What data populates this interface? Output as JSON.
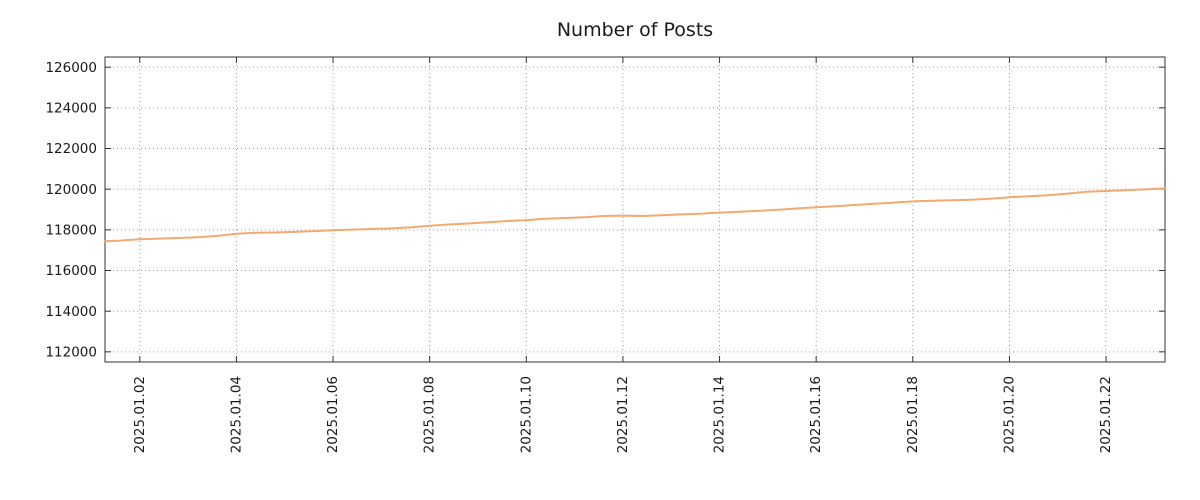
{
  "page": {
    "title": "Number of Posts"
  },
  "chart_data": {
    "type": "line",
    "title": "Number of Posts",
    "legend": "none",
    "background": "#ffffff",
    "line_color": "#f3a96f",
    "grid": {
      "style": "dotted",
      "color": "#999999"
    },
    "x_axis": {
      "unit": "date (2025.01.DD)",
      "range": [
        1.28,
        23.22
      ],
      "ticks": [
        {
          "value": 2,
          "label": "2025.01.02"
        },
        {
          "value": 4,
          "label": "2025.01.04"
        },
        {
          "value": 6,
          "label": "2025.01.06"
        },
        {
          "value": 8,
          "label": "2025.01.08"
        },
        {
          "value": 10,
          "label": "2025.01.10"
        },
        {
          "value": 12,
          "label": "2025.01.12"
        },
        {
          "value": 14,
          "label": "2025.01.14"
        },
        {
          "value": 16,
          "label": "2025.01.16"
        },
        {
          "value": 18,
          "label": "2025.01.18"
        },
        {
          "value": 20,
          "label": "2025.01.20"
        },
        {
          "value": 22,
          "label": "2025.01.22"
        }
      ]
    },
    "y_axis": {
      "range": [
        111500,
        126500
      ],
      "ticks": [
        112000,
        114000,
        116000,
        118000,
        120000,
        122000,
        124000,
        126000
      ]
    },
    "series": [
      {
        "name": "Number of Posts",
        "points": [
          [
            1.28,
            117440
          ],
          [
            1.6,
            117470
          ],
          [
            2.0,
            117540
          ],
          [
            2.4,
            117570
          ],
          [
            2.8,
            117600
          ],
          [
            3.2,
            117640
          ],
          [
            3.6,
            117700
          ],
          [
            4.0,
            117810
          ],
          [
            4.4,
            117860
          ],
          [
            4.8,
            117870
          ],
          [
            5.2,
            117900
          ],
          [
            5.6,
            117940
          ],
          [
            6.0,
            117980
          ],
          [
            6.4,
            118010
          ],
          [
            6.8,
            118040
          ],
          [
            7.2,
            118070
          ],
          [
            7.6,
            118120
          ],
          [
            8.0,
            118200
          ],
          [
            8.4,
            118260
          ],
          [
            8.8,
            118310
          ],
          [
            9.2,
            118370
          ],
          [
            9.6,
            118430
          ],
          [
            10.0,
            118480
          ],
          [
            10.4,
            118550
          ],
          [
            10.8,
            118580
          ],
          [
            11.2,
            118620
          ],
          [
            11.6,
            118680
          ],
          [
            12.0,
            118700
          ],
          [
            12.4,
            118680
          ],
          [
            12.8,
            118720
          ],
          [
            13.2,
            118760
          ],
          [
            13.6,
            118790
          ],
          [
            14.0,
            118850
          ],
          [
            14.4,
            118890
          ],
          [
            14.8,
            118930
          ],
          [
            15.2,
            118990
          ],
          [
            15.6,
            119050
          ],
          [
            16.0,
            119110
          ],
          [
            16.4,
            119160
          ],
          [
            16.8,
            119220
          ],
          [
            17.2,
            119280
          ],
          [
            17.6,
            119340
          ],
          [
            18.0,
            119400
          ],
          [
            18.4,
            119430
          ],
          [
            18.8,
            119450
          ],
          [
            19.2,
            119480
          ],
          [
            19.6,
            119530
          ],
          [
            20.0,
            119600
          ],
          [
            20.4,
            119650
          ],
          [
            20.8,
            119700
          ],
          [
            21.2,
            119780
          ],
          [
            21.6,
            119870
          ],
          [
            22.0,
            119910
          ],
          [
            22.4,
            119950
          ],
          [
            22.8,
            119990
          ],
          [
            23.22,
            120040
          ]
        ]
      }
    ]
  }
}
